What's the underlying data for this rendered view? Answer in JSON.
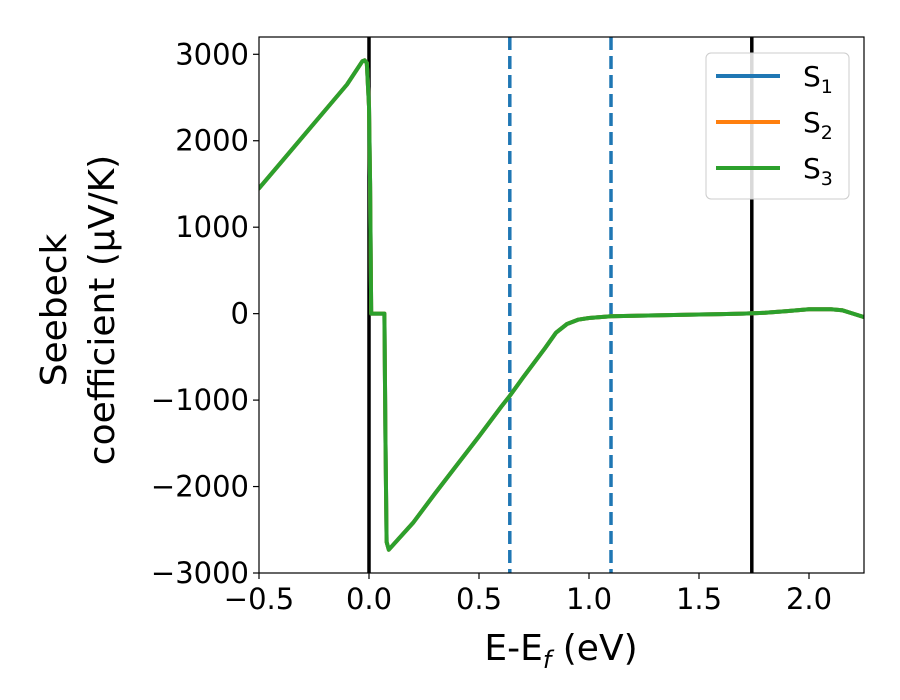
{
  "chart_data": {
    "type": "line",
    "title": "",
    "xlabel": "E-E_f (eV)",
    "xlabel_parts": {
      "pre": "E-E",
      "sub": "f",
      "post": " (eV)"
    },
    "ylabel_line1": "Seebeck",
    "ylabel_line2": "coefficient  (μV/K)",
    "xlim": [
      -0.5,
      2.25
    ],
    "ylim": [
      -3000,
      3200
    ],
    "xticks": [
      -0.5,
      0.0,
      0.5,
      1.0,
      1.5,
      2.0
    ],
    "xtick_labels": [
      "−0.5",
      "0.0",
      "0.5",
      "1.0",
      "1.5",
      "2.0"
    ],
    "yticks": [
      -3000,
      -2000,
      -1000,
      0,
      1000,
      2000,
      3000
    ],
    "ytick_labels": [
      "−3000",
      "−2000",
      "−1000",
      "0",
      "1000",
      "2000",
      "3000"
    ],
    "grid": false,
    "legend_position": "top-right",
    "series": [
      {
        "name": "S_1",
        "label_main": "S",
        "label_sub": "1",
        "color": "#1f77b4",
        "x": [
          -0.5,
          -0.4,
          -0.3,
          -0.2,
          -0.1,
          -0.03,
          -0.02,
          -0.01,
          0.0,
          0.005,
          0.01,
          0.02,
          0.07,
          0.075,
          0.08,
          0.09,
          0.2,
          0.3,
          0.4,
          0.5,
          0.6,
          0.64,
          0.7,
          0.8,
          0.85,
          0.9,
          0.95,
          1.0,
          1.1,
          1.3,
          1.5,
          1.6,
          1.7,
          1.8,
          1.9,
          2.0,
          2.1,
          2.15,
          2.2,
          2.25
        ],
        "y": [
          1450,
          1750,
          2050,
          2350,
          2650,
          2920,
          2930,
          2900,
          2400,
          1500,
          0,
          0,
          0,
          -1500,
          -2640,
          -2730,
          -2420,
          -2080,
          -1750,
          -1420,
          -1080,
          -950,
          -740,
          -400,
          -220,
          -120,
          -70,
          -50,
          -30,
          -20,
          -10,
          -5,
          0,
          10,
          30,
          50,
          50,
          40,
          0,
          -40
        ]
      },
      {
        "name": "S_2",
        "label_main": "S",
        "label_sub": "2",
        "color": "#ff7f0e",
        "x": [
          -0.5,
          -0.4,
          -0.3,
          -0.2,
          -0.1,
          -0.03,
          -0.02,
          -0.01,
          0.0,
          0.005,
          0.01,
          0.02,
          0.07,
          0.075,
          0.08,
          0.09,
          0.2,
          0.3,
          0.4,
          0.5,
          0.6,
          0.64,
          0.7,
          0.8,
          0.85,
          0.9,
          0.95,
          1.0,
          1.1,
          1.3,
          1.5,
          1.6,
          1.7,
          1.8,
          1.9,
          2.0,
          2.1,
          2.15,
          2.2,
          2.25
        ],
        "y": [
          1450,
          1750,
          2050,
          2350,
          2650,
          2920,
          2930,
          2900,
          2400,
          1500,
          0,
          0,
          0,
          -1500,
          -2640,
          -2730,
          -2420,
          -2080,
          -1750,
          -1420,
          -1080,
          -950,
          -740,
          -400,
          -220,
          -120,
          -70,
          -50,
          -30,
          -20,
          -10,
          -5,
          0,
          10,
          30,
          50,
          50,
          40,
          0,
          -40
        ]
      },
      {
        "name": "S_3",
        "label_main": "S",
        "label_sub": "3",
        "color": "#2ca02c",
        "x": [
          -0.5,
          -0.4,
          -0.3,
          -0.2,
          -0.1,
          -0.03,
          -0.02,
          -0.01,
          0.0,
          0.005,
          0.01,
          0.02,
          0.07,
          0.075,
          0.08,
          0.09,
          0.2,
          0.3,
          0.4,
          0.5,
          0.6,
          0.64,
          0.7,
          0.8,
          0.85,
          0.9,
          0.95,
          1.0,
          1.1,
          1.3,
          1.5,
          1.6,
          1.7,
          1.8,
          1.9,
          2.0,
          2.1,
          2.15,
          2.2,
          2.25
        ],
        "y": [
          1450,
          1750,
          2050,
          2350,
          2650,
          2920,
          2930,
          2900,
          2400,
          1500,
          0,
          0,
          0,
          -1500,
          -2640,
          -2730,
          -2420,
          -2080,
          -1750,
          -1420,
          -1080,
          -950,
          -740,
          -400,
          -220,
          -120,
          -70,
          -50,
          -30,
          -20,
          -10,
          -5,
          0,
          10,
          30,
          50,
          50,
          40,
          0,
          -40
        ]
      }
    ],
    "vlines": [
      {
        "x": 0.0,
        "style": "solid",
        "color": "#000000"
      },
      {
        "x": 1.74,
        "style": "solid",
        "color": "#000000"
      },
      {
        "x": 0.64,
        "style": "dashed",
        "color": "#1f77b4"
      },
      {
        "x": 1.1,
        "style": "dashed",
        "color": "#1f77b4"
      }
    ]
  }
}
